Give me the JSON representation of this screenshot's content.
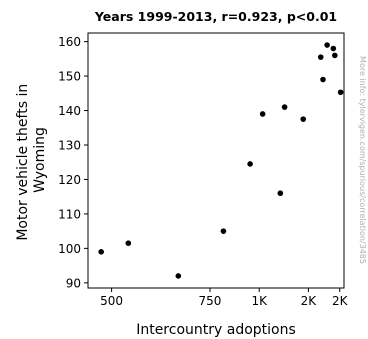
{
  "chart_data": {
    "type": "scatter",
    "title": "Years 1999-2013, r=0.923, p<0.01",
    "xlabel": "Intercountry adoptions",
    "ylabel_lines": [
      "Motor vehicle thefts in",
      "Wyoming"
    ],
    "side_note": "More info: tylervigen.com/spurious/correlation/3485",
    "x_scale": "reciprocal",
    "xlim": [
      463,
      2350
    ],
    "ylim": [
      88.5,
      162.5
    ],
    "x_ticks": [
      {
        "value": 500,
        "label": "500"
      },
      {
        "value": 750,
        "label": "750"
      },
      {
        "value": 1000,
        "label": "1K"
      },
      {
        "value": 1500,
        "label": "2K"
      },
      {
        "value": 2200,
        "label": "2K"
      }
    ],
    "y_ticks": [
      {
        "value": 90,
        "label": "90"
      },
      {
        "value": 100,
        "label": "100"
      },
      {
        "value": 110,
        "label": "110"
      },
      {
        "value": 120,
        "label": "120"
      },
      {
        "value": 130,
        "label": "130"
      },
      {
        "value": 140,
        "label": "140"
      },
      {
        "value": 150,
        "label": "150"
      },
      {
        "value": 160,
        "label": "160"
      }
    ],
    "marker_color": "#000000",
    "grid": false,
    "points": [
      {
        "x": 483,
        "y": 99
      },
      {
        "x": 530,
        "y": 101.5
      },
      {
        "x": 646,
        "y": 92
      },
      {
        "x": 805,
        "y": 105
      },
      {
        "x": 942,
        "y": 124.5
      },
      {
        "x": 1024,
        "y": 139
      },
      {
        "x": 1167,
        "y": 116
      },
      {
        "x": 1208,
        "y": 141
      },
      {
        "x": 1425,
        "y": 137.5
      },
      {
        "x": 1715,
        "y": 155.5
      },
      {
        "x": 1761,
        "y": 149
      },
      {
        "x": 1853,
        "y": 159
      },
      {
        "x": 2008,
        "y": 158
      },
      {
        "x": 2050,
        "y": 156
      },
      {
        "x": 2230,
        "y": 145.3
      }
    ]
  }
}
